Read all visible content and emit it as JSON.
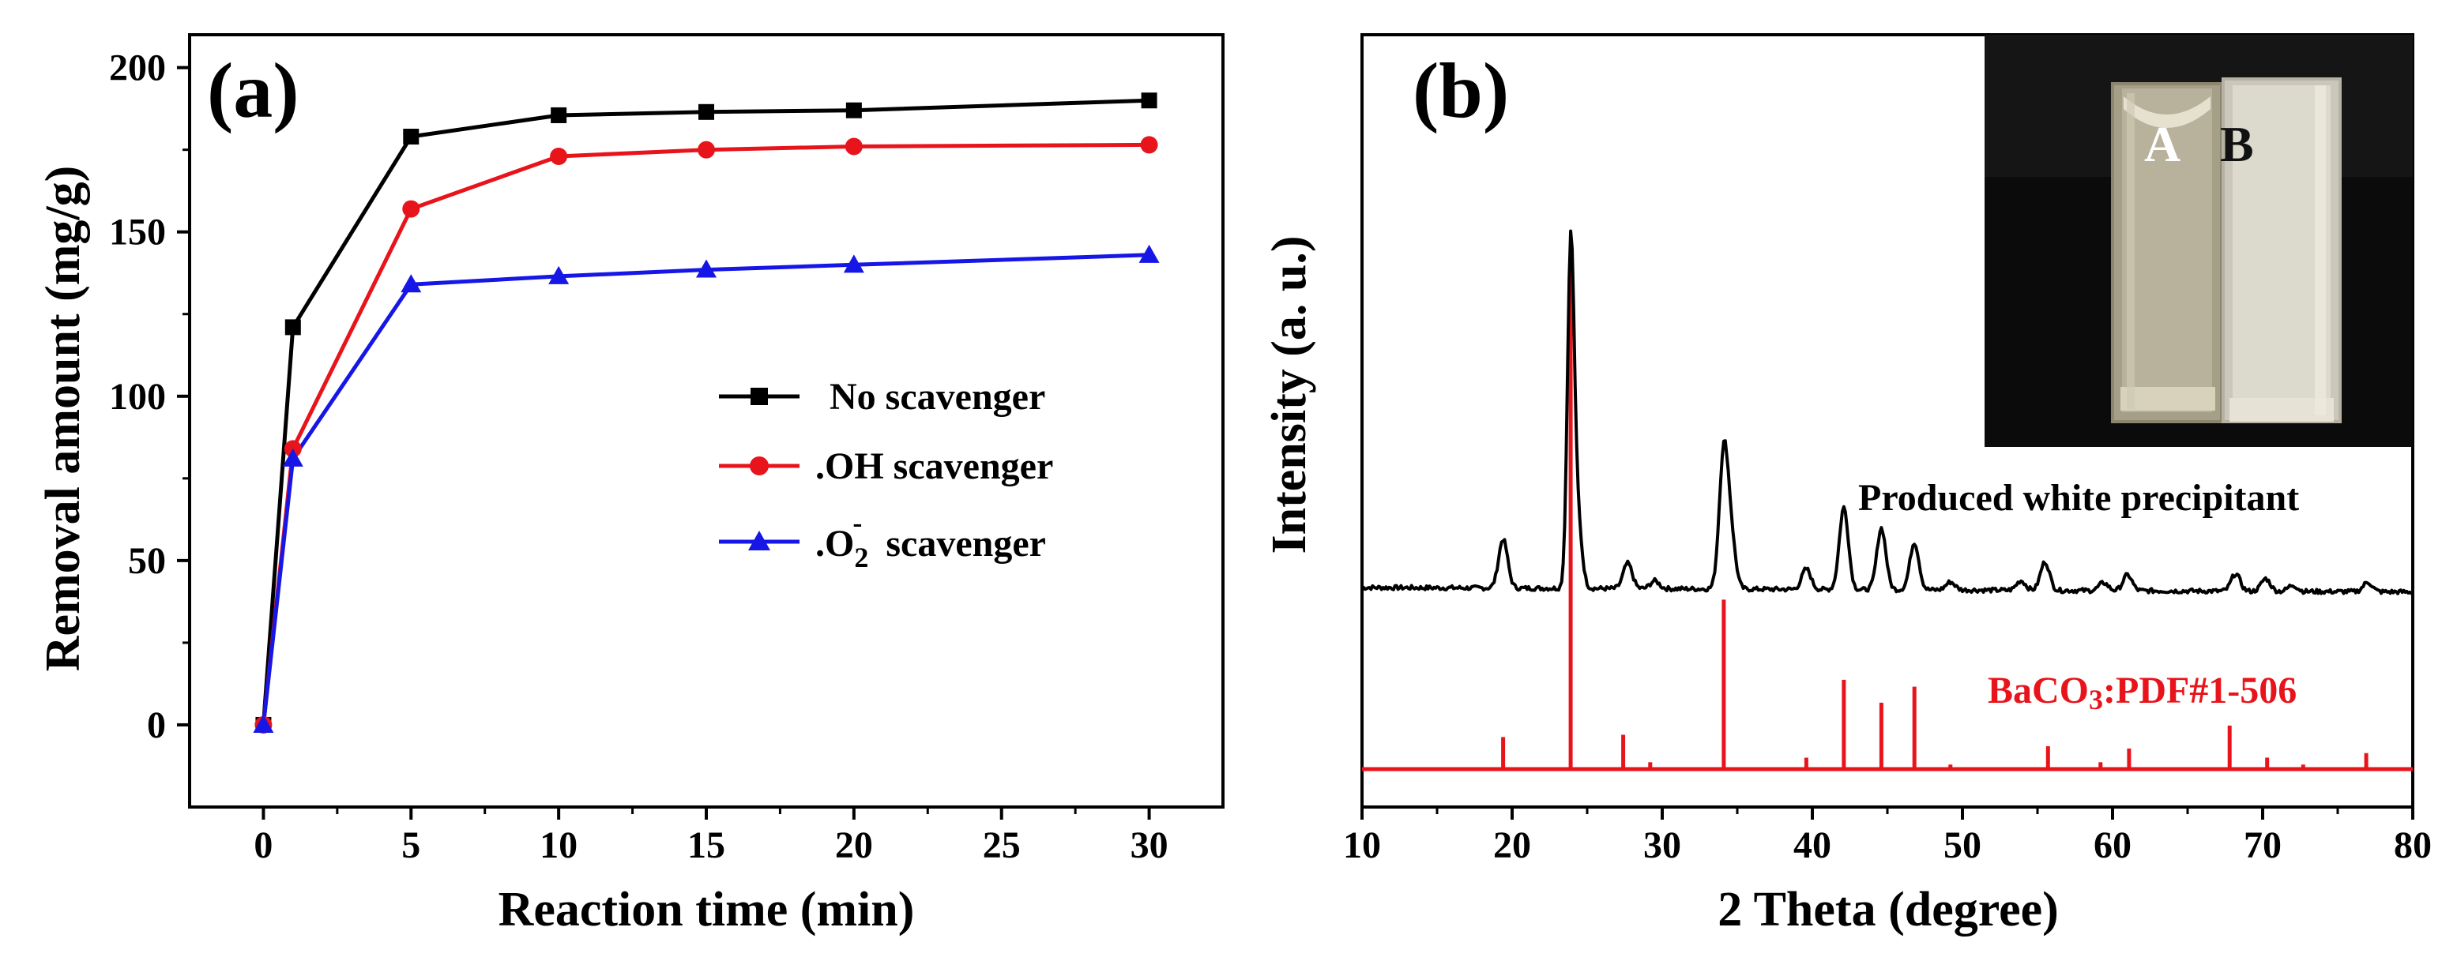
{
  "chart_data": [
    {
      "panel": "(a)",
      "type": "line",
      "xlabel": "Reaction time (min)",
      "ylabel": "Removal amount (mg/g)",
      "xlim": [
        -2.5,
        32.5
      ],
      "ylim": [
        -25,
        210
      ],
      "xticks": [
        "0",
        "5",
        "10",
        "15",
        "20",
        "25",
        "30"
      ],
      "xtick_values": [
        0,
        5,
        10,
        15,
        20,
        25,
        30
      ],
      "yticks": [
        "0",
        "50",
        "100",
        "150",
        "200"
      ],
      "ytick_values": [
        0,
        50,
        100,
        150,
        200
      ],
      "x": [
        0,
        1,
        5,
        10,
        15,
        20,
        30
      ],
      "series": [
        {
          "name": "No  scavenger",
          "label_main": "No  scavenger",
          "color": "#000000",
          "marker": "square",
          "values": [
            0,
            121,
            179,
            185.5,
            186.5,
            187,
            190
          ]
        },
        {
          "name": ".OH scavenger",
          "label_main": ".OH scavenger",
          "color": "#e8141c",
          "marker": "circle",
          "values": [
            0,
            84,
            157,
            173,
            175,
            176,
            176.5
          ]
        },
        {
          "name": ".O2- scavenger",
          "label_main": ".O",
          "label_sub": "2",
          "label_sup": "-",
          "label_tail": "  scavenger",
          "color": "#1616e6",
          "marker": "triangle",
          "values": [
            0,
            81,
            134,
            136.5,
            138.5,
            140,
            143
          ]
        }
      ],
      "legend_position": "center-right"
    },
    {
      "panel": "(b)",
      "type": "line",
      "xlabel": "2 Theta (degree)",
      "ylabel": "Intensity (a. u.)",
      "xlim": [
        10,
        80
      ],
      "xticks": [
        "10",
        "20",
        "30",
        "40",
        "50",
        "60",
        "70",
        "80"
      ],
      "xtick_values": [
        10,
        20,
        30,
        40,
        50,
        60,
        70,
        80
      ],
      "series": [
        {
          "name": "Produced white precipitant",
          "color": "#000000",
          "kind": "xrd_pattern",
          "baseline": 0.0,
          "peaks": [
            [
              19.4,
              0.31
            ],
            [
              23.9,
              2.05
            ],
            [
              24.3,
              0.5
            ],
            [
              27.7,
              0.16
            ],
            [
              29.5,
              0.05
            ],
            [
              34.1,
              0.86
            ],
            [
              34.6,
              0.28
            ],
            [
              39.6,
              0.13
            ],
            [
              42.1,
              0.52
            ],
            [
              44.6,
              0.39
            ],
            [
              46.8,
              0.3
            ],
            [
              49.2,
              0.05
            ],
            [
              53.9,
              0.06
            ],
            [
              55.5,
              0.18
            ],
            [
              59.4,
              0.05
            ],
            [
              61.0,
              0.1
            ],
            [
              68.2,
              0.11
            ],
            [
              70.2,
              0.08
            ],
            [
              72.0,
              0.04
            ],
            [
              77.0,
              0.06
            ]
          ]
        },
        {
          "name": "BaCO3:PDF#1-506",
          "color": "#e8141c",
          "kind": "reference_sticks",
          "sticks": [
            [
              19.4,
              0.14
            ],
            [
              23.9,
              2.24
            ],
            [
              27.4,
              0.15
            ],
            [
              29.2,
              0.03
            ],
            [
              34.1,
              0.74
            ],
            [
              39.6,
              0.05
            ],
            [
              42.1,
              0.39
            ],
            [
              44.6,
              0.29
            ],
            [
              46.8,
              0.36
            ],
            [
              49.2,
              0.02
            ],
            [
              55.7,
              0.1
            ],
            [
              59.2,
              0.03
            ],
            [
              61.1,
              0.09
            ],
            [
              67.8,
              0.19
            ],
            [
              70.3,
              0.05
            ],
            [
              72.7,
              0.02
            ],
            [
              76.9,
              0.07
            ]
          ]
        }
      ],
      "annotation_sample": "Produced white precipitant",
      "annotation_reference": "BaCO",
      "annotation_reference_sub": "3",
      "annotation_reference_tail": ":PDF#1-506",
      "inset_photo": {
        "label_a": "A",
        "label_b": "B",
        "description_colors": {
          "background": "#0b0b0b",
          "cuvette_a": "#b7b09a",
          "cuvette_b": "#d6d3c6"
        }
      }
    }
  ]
}
